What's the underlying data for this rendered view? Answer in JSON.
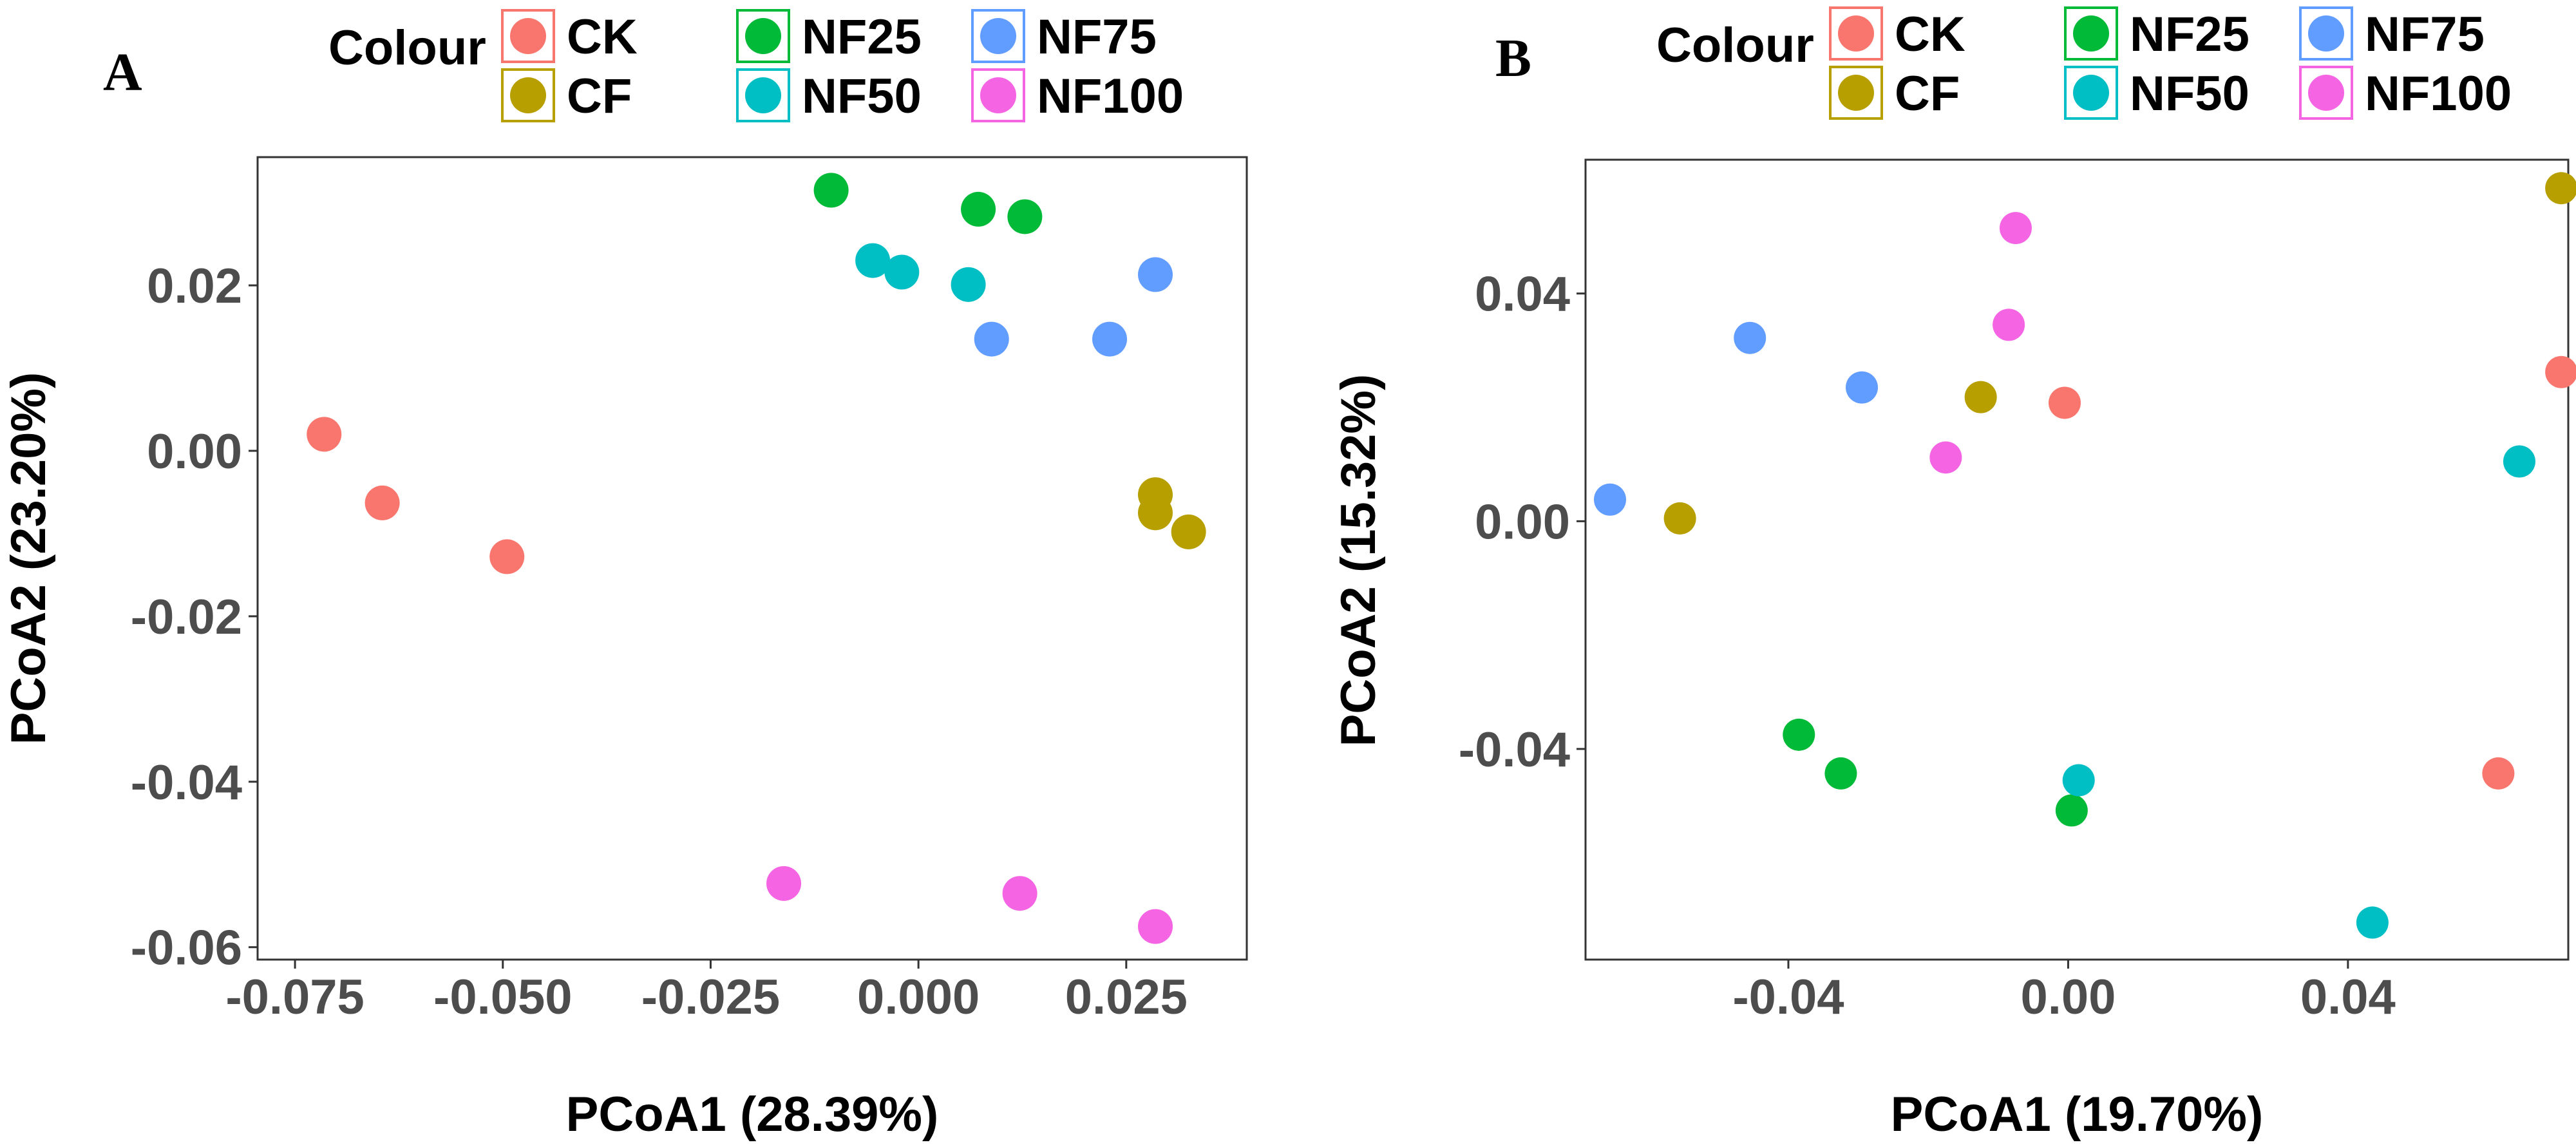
{
  "colors": {
    "CK": "#F8766D",
    "CF": "#B79F00",
    "NF25": "#00BA38",
    "NF50": "#00BFC4",
    "NF75": "#619CFF",
    "NF100": "#F564E3"
  },
  "legend": {
    "title": "Colour",
    "groups": [
      "CK",
      "CF",
      "NF25",
      "NF50",
      "NF75",
      "NF100"
    ]
  },
  "chart_data": [
    {
      "type": "scatter",
      "panel": "A",
      "xlabel": "PCoA1 (28.39%)",
      "ylabel": "PCoA2 (23.20%)",
      "xlim": [
        -0.0795,
        0.0395
      ],
      "ylim": [
        -0.0615,
        0.0355
      ],
      "xticks": [
        -0.075,
        -0.05,
        -0.025,
        0.0,
        0.025
      ],
      "xtick_labels": [
        "-0.075",
        "-0.050",
        "-0.025",
        "0.000",
        "0.025"
      ],
      "yticks": [
        -0.06,
        -0.04,
        -0.02,
        0.0,
        0.02
      ],
      "ytick_labels": [
        "-0.06",
        "-0.04",
        "-0.02",
        "0.00",
        "0.02"
      ],
      "grid": false,
      "series": [
        {
          "name": "CK",
          "points": [
            [
              -0.0715,
              0.002
            ],
            [
              -0.0645,
              -0.0063
            ],
            [
              -0.0495,
              -0.0128
            ]
          ]
        },
        {
          "name": "CF",
          "points": [
            [
              0.0285,
              -0.0053
            ],
            [
              0.0285,
              -0.0075
            ],
            [
              0.0325,
              -0.0098
            ]
          ]
        },
        {
          "name": "NF25",
          "points": [
            [
              -0.0105,
              0.0315
            ],
            [
              0.0072,
              0.0292
            ],
            [
              0.0128,
              0.0283
            ]
          ]
        },
        {
          "name": "NF50",
          "points": [
            [
              -0.0055,
              0.023
            ],
            [
              -0.002,
              0.0216
            ],
            [
              0.006,
              0.0201
            ]
          ]
        },
        {
          "name": "NF75",
          "points": [
            [
              0.0088,
              0.0135
            ],
            [
              0.023,
              0.0135
            ],
            [
              0.0285,
              0.0213
            ]
          ]
        },
        {
          "name": "NF100",
          "points": [
            [
              -0.0162,
              -0.0523
            ],
            [
              0.0122,
              -0.0535
            ],
            [
              0.0285,
              -0.0575
            ]
          ]
        }
      ]
    },
    {
      "type": "scatter",
      "panel": "B",
      "xlabel": "PCoA1 (19.70%)",
      "ylabel": "PCoA2 (15.32%)",
      "xlim": [
        -0.069,
        0.0715
      ],
      "ylim": [
        -0.077,
        0.0635
      ],
      "xticks": [
        -0.04,
        0.0,
        0.04
      ],
      "xtick_labels": [
        "-0.04",
        "0.00",
        "0.04"
      ],
      "yticks": [
        -0.04,
        0.0,
        0.04
      ],
      "ytick_labels": [
        "-0.04",
        "0.00",
        "0.04"
      ],
      "grid": false,
      "series": [
        {
          "name": "CK",
          "points": [
            [
              -0.0005,
              0.0208
            ],
            [
              0.0615,
              -0.0443
            ],
            [
              0.0705,
              0.0262
            ]
          ]
        },
        {
          "name": "CF",
          "points": [
            [
              -0.0555,
              0.0005
            ],
            [
              -0.0125,
              0.0218
            ],
            [
              0.0705,
              0.0585
            ]
          ]
        },
        {
          "name": "NF25",
          "points": [
            [
              -0.0385,
              -0.0375
            ],
            [
              -0.0325,
              -0.0443
            ],
            [
              0.0005,
              -0.0508
            ]
          ]
        },
        {
          "name": "NF50",
          "points": [
            [
              0.0015,
              -0.0455
            ],
            [
              0.0435,
              -0.0705
            ],
            [
              0.0645,
              0.0105
            ]
          ]
        },
        {
          "name": "NF75",
          "points": [
            [
              -0.0655,
              0.0038
            ],
            [
              -0.0455,
              0.0322
            ],
            [
              -0.0295,
              0.0235
            ]
          ]
        },
        {
          "name": "NF100",
          "points": [
            [
              -0.0175,
              0.0112
            ],
            [
              -0.0085,
              0.0345
            ],
            [
              -0.0075,
              0.0515
            ]
          ]
        }
      ]
    }
  ]
}
